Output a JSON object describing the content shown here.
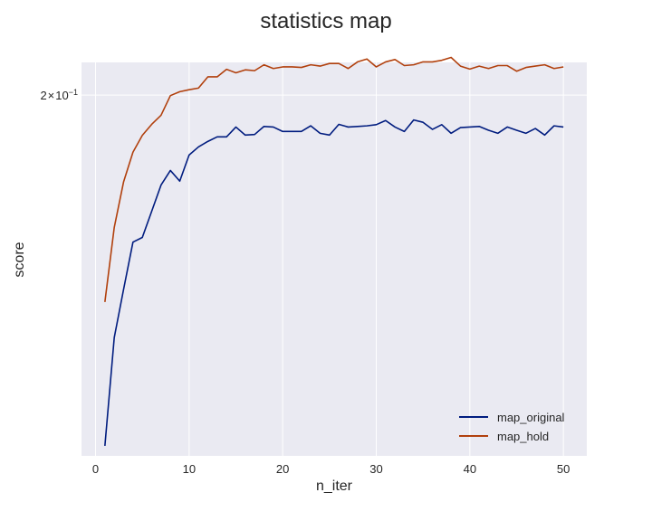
{
  "chart_data": {
    "type": "line",
    "title": "statistics map",
    "xlabel": "n_iter",
    "ylabel": "score",
    "xlim": [
      -1.5,
      52.5
    ],
    "ylim": [
      0.105,
      0.212
    ],
    "yscale": "log",
    "grid": true,
    "legend_position": "lower-right",
    "x_ticks": [
      {
        "value": 0,
        "label": "0"
      },
      {
        "value": 10,
        "label": "10"
      },
      {
        "value": 20,
        "label": "20"
      },
      {
        "value": 30,
        "label": "30"
      },
      {
        "value": 40,
        "label": "40"
      },
      {
        "value": 50,
        "label": "50"
      }
    ],
    "y_ticks": [
      {
        "value": 0.2,
        "base": "2",
        "mult": "×",
        "ten": "10",
        "exp": "−1"
      }
    ],
    "x": [
      1,
      2,
      3,
      4,
      5,
      6,
      7,
      8,
      9,
      10,
      11,
      12,
      13,
      14,
      15,
      16,
      17,
      18,
      19,
      20,
      21,
      22,
      23,
      24,
      25,
      26,
      27,
      28,
      29,
      30,
      31,
      32,
      33,
      34,
      35,
      36,
      37,
      38,
      39,
      40,
      41,
      42,
      43,
      44,
      45,
      46,
      47,
      48,
      49,
      50
    ],
    "series": [
      {
        "name": "map_original",
        "color": "#001c7f",
        "values": [
          0.1069,
          0.1297,
          0.1414,
          0.1538,
          0.1551,
          0.1625,
          0.1703,
          0.1748,
          0.1715,
          0.1797,
          0.1823,
          0.1841,
          0.1856,
          0.1856,
          0.1889,
          0.1862,
          0.1864,
          0.1891,
          0.1889,
          0.1874,
          0.1874,
          0.1874,
          0.1893,
          0.1868,
          0.1862,
          0.1898,
          0.1889,
          0.1891,
          0.1893,
          0.1897,
          0.1911,
          0.1889,
          0.1874,
          0.1913,
          0.1905,
          0.1881,
          0.1897,
          0.1868,
          0.1887,
          0.1889,
          0.1891,
          0.1878,
          0.1868,
          0.1889,
          0.1878,
          0.1868,
          0.1884,
          0.1862,
          0.1893,
          0.1889
        ]
      },
      {
        "name": "map_hold",
        "color": "#b1400d",
        "values": [
          0.1382,
          0.1579,
          0.1713,
          0.1806,
          0.1861,
          0.1898,
          0.1929,
          0.1998,
          0.2012,
          0.2019,
          0.2025,
          0.2066,
          0.2066,
          0.2094,
          0.2081,
          0.2092,
          0.2089,
          0.2111,
          0.2097,
          0.2103,
          0.2103,
          0.2101,
          0.2111,
          0.2106,
          0.2116,
          0.2116,
          0.2097,
          0.2122,
          0.2133,
          0.2103,
          0.2122,
          0.2131,
          0.2108,
          0.2111,
          0.2122,
          0.2122,
          0.2128,
          0.2139,
          0.2106,
          0.2095,
          0.2106,
          0.2097,
          0.2108,
          0.2108,
          0.2087,
          0.2101,
          0.2106,
          0.2111,
          0.2097,
          0.2103
        ]
      }
    ]
  }
}
